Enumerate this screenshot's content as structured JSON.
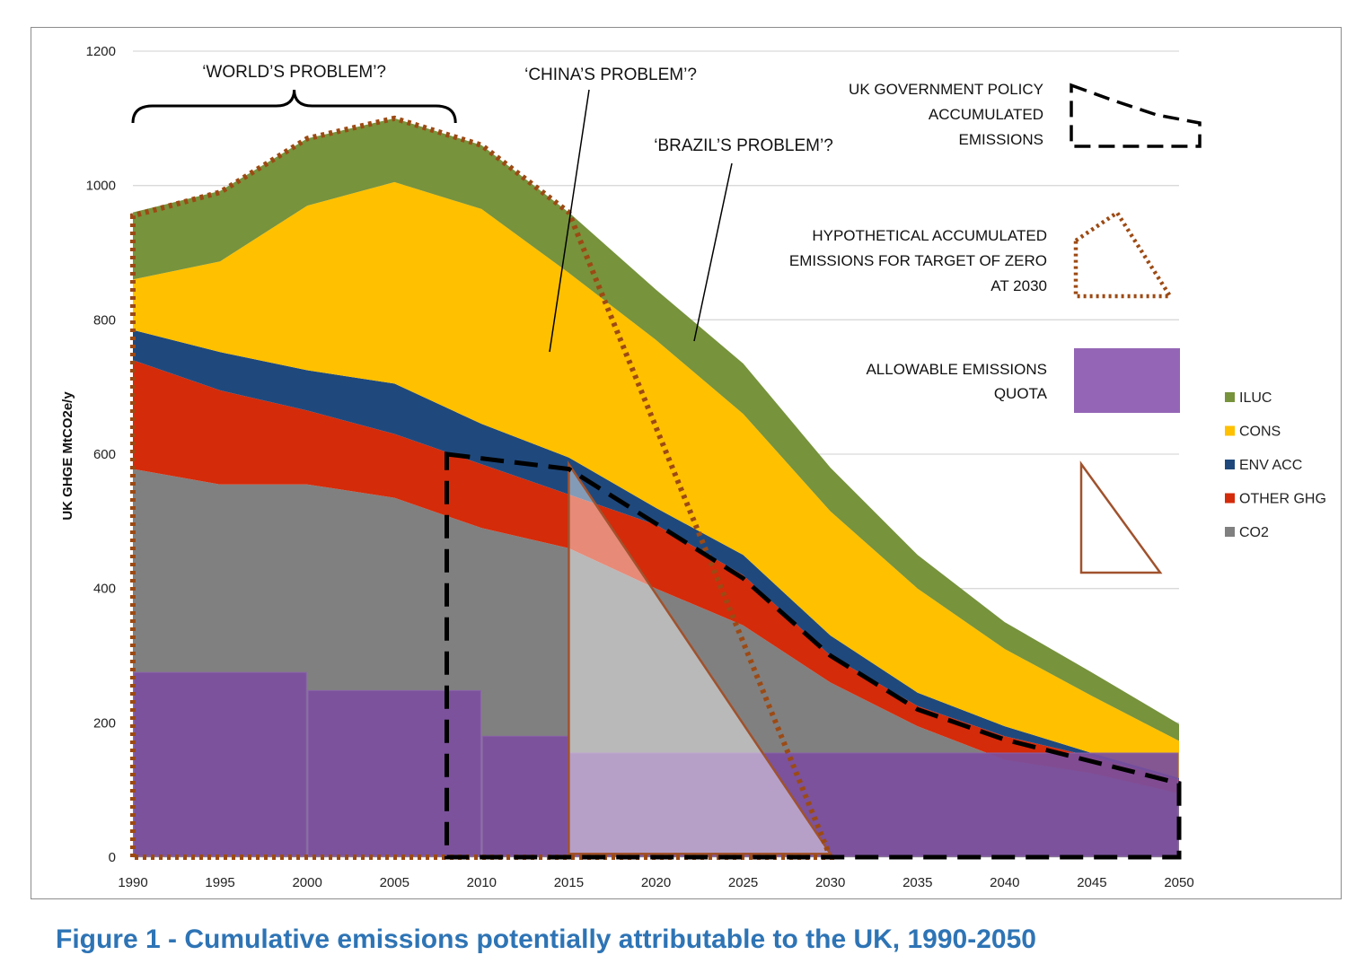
{
  "chart_data": {
    "type": "area",
    "ylabel": "UK GHGE MtCO2e/y",
    "xlabel": "",
    "ylim": [
      0,
      1200
    ],
    "yticks": [
      0,
      200,
      400,
      600,
      800,
      1000,
      1200
    ],
    "xlim": [
      1990,
      2050
    ],
    "x": [
      1990,
      1995,
      2000,
      2005,
      2010,
      2015,
      2020,
      2025,
      2030,
      2035,
      2040,
      2045,
      2050
    ],
    "grid": true,
    "legend_position": "right",
    "series": [
      {
        "name": "CO2",
        "color": "#808080",
        "values": [
          578,
          555,
          555,
          535,
          490,
          460,
          400,
          345,
          260,
          195,
          145,
          125,
          95
        ]
      },
      {
        "name": "OTHER GHG",
        "color": "#d42b0a",
        "values": [
          162,
          140,
          110,
          95,
          95,
          80,
          95,
          75,
          40,
          30,
          35,
          25,
          20
        ]
      },
      {
        "name": "ENV ACC",
        "color": "#1f497d",
        "values": [
          45,
          57,
          60,
          75,
          60,
          55,
          25,
          30,
          30,
          20,
          15,
          5,
          3
        ]
      },
      {
        "name": "CONS",
        "color": "#ffc000",
        "values": [
          75,
          135,
          245,
          300,
          320,
          275,
          250,
          210,
          185,
          155,
          115,
          85,
          55
        ]
      },
      {
        "name": "ILUC",
        "color": "#77933c",
        "values": [
          100,
          105,
          100,
          95,
          95,
          90,
          75,
          75,
          65,
          50,
          40,
          35,
          25
        ]
      }
    ],
    "allowable_quota": [
      {
        "x_start": 1990,
        "x_end": 2000,
        "value": 275
      },
      {
        "x_start": 2000,
        "x_end": 2010,
        "value": 248
      },
      {
        "x_start": 2010,
        "x_end": 2015,
        "value": 180
      },
      {
        "x_start": 2015,
        "x_end": 2050,
        "value": 155
      }
    ],
    "uk_policy_path": [
      [
        2008,
        600
      ],
      [
        2015,
        578
      ],
      [
        2025,
        415
      ],
      [
        2030,
        300
      ],
      [
        2035,
        220
      ],
      [
        2040,
        175
      ],
      [
        2050,
        110
      ],
      [
        2050,
        0
      ],
      [
        2008,
        0
      ]
    ],
    "hypothetical_zero_2030_path": [
      [
        1990,
        0
      ],
      [
        1990,
        955
      ],
      [
        1995,
        990
      ],
      [
        2000,
        1070
      ],
      [
        2005,
        1100
      ],
      [
        2010,
        1060
      ],
      [
        2015,
        960
      ],
      [
        2030,
        0
      ]
    ],
    "triangle_path": [
      [
        2015,
        585
      ],
      [
        2015,
        5
      ],
      [
        2030,
        5
      ]
    ],
    "annotations": [
      {
        "text": "‘WORLD’S PROBLEM’?",
        "x": 2004.5,
        "y": 1163
      },
      {
        "text": "‘CHINA’S PROBLEM’?",
        "x": 2022.5,
        "y": 1160
      },
      {
        "text": "‘BRAZIL’S PROBLEM’?",
        "x": 2029.5,
        "y": 1053
      }
    ],
    "key": [
      {
        "lines": [
          "UK GOVERNMENT POLICY",
          "ACCUMULATED",
          "EMISSIONS"
        ],
        "symbol": "dashed-black-outline"
      },
      {
        "lines": [
          "HYPOTHETICAL ACCUMULATED",
          "EMISSIONS FOR TARGET OF ZERO",
          "AT 2030"
        ],
        "symbol": "dotted-brown-outline"
      },
      {
        "lines": [
          "ALLOWABLE EMISSIONS",
          "QUOTA"
        ],
        "symbol": "purple-box"
      },
      {
        "lines": [],
        "symbol": "brown-triangle-outline"
      }
    ]
  },
  "caption": "Figure 1 - Cumulative emissions potentially attributable to the UK, 1990-2050"
}
